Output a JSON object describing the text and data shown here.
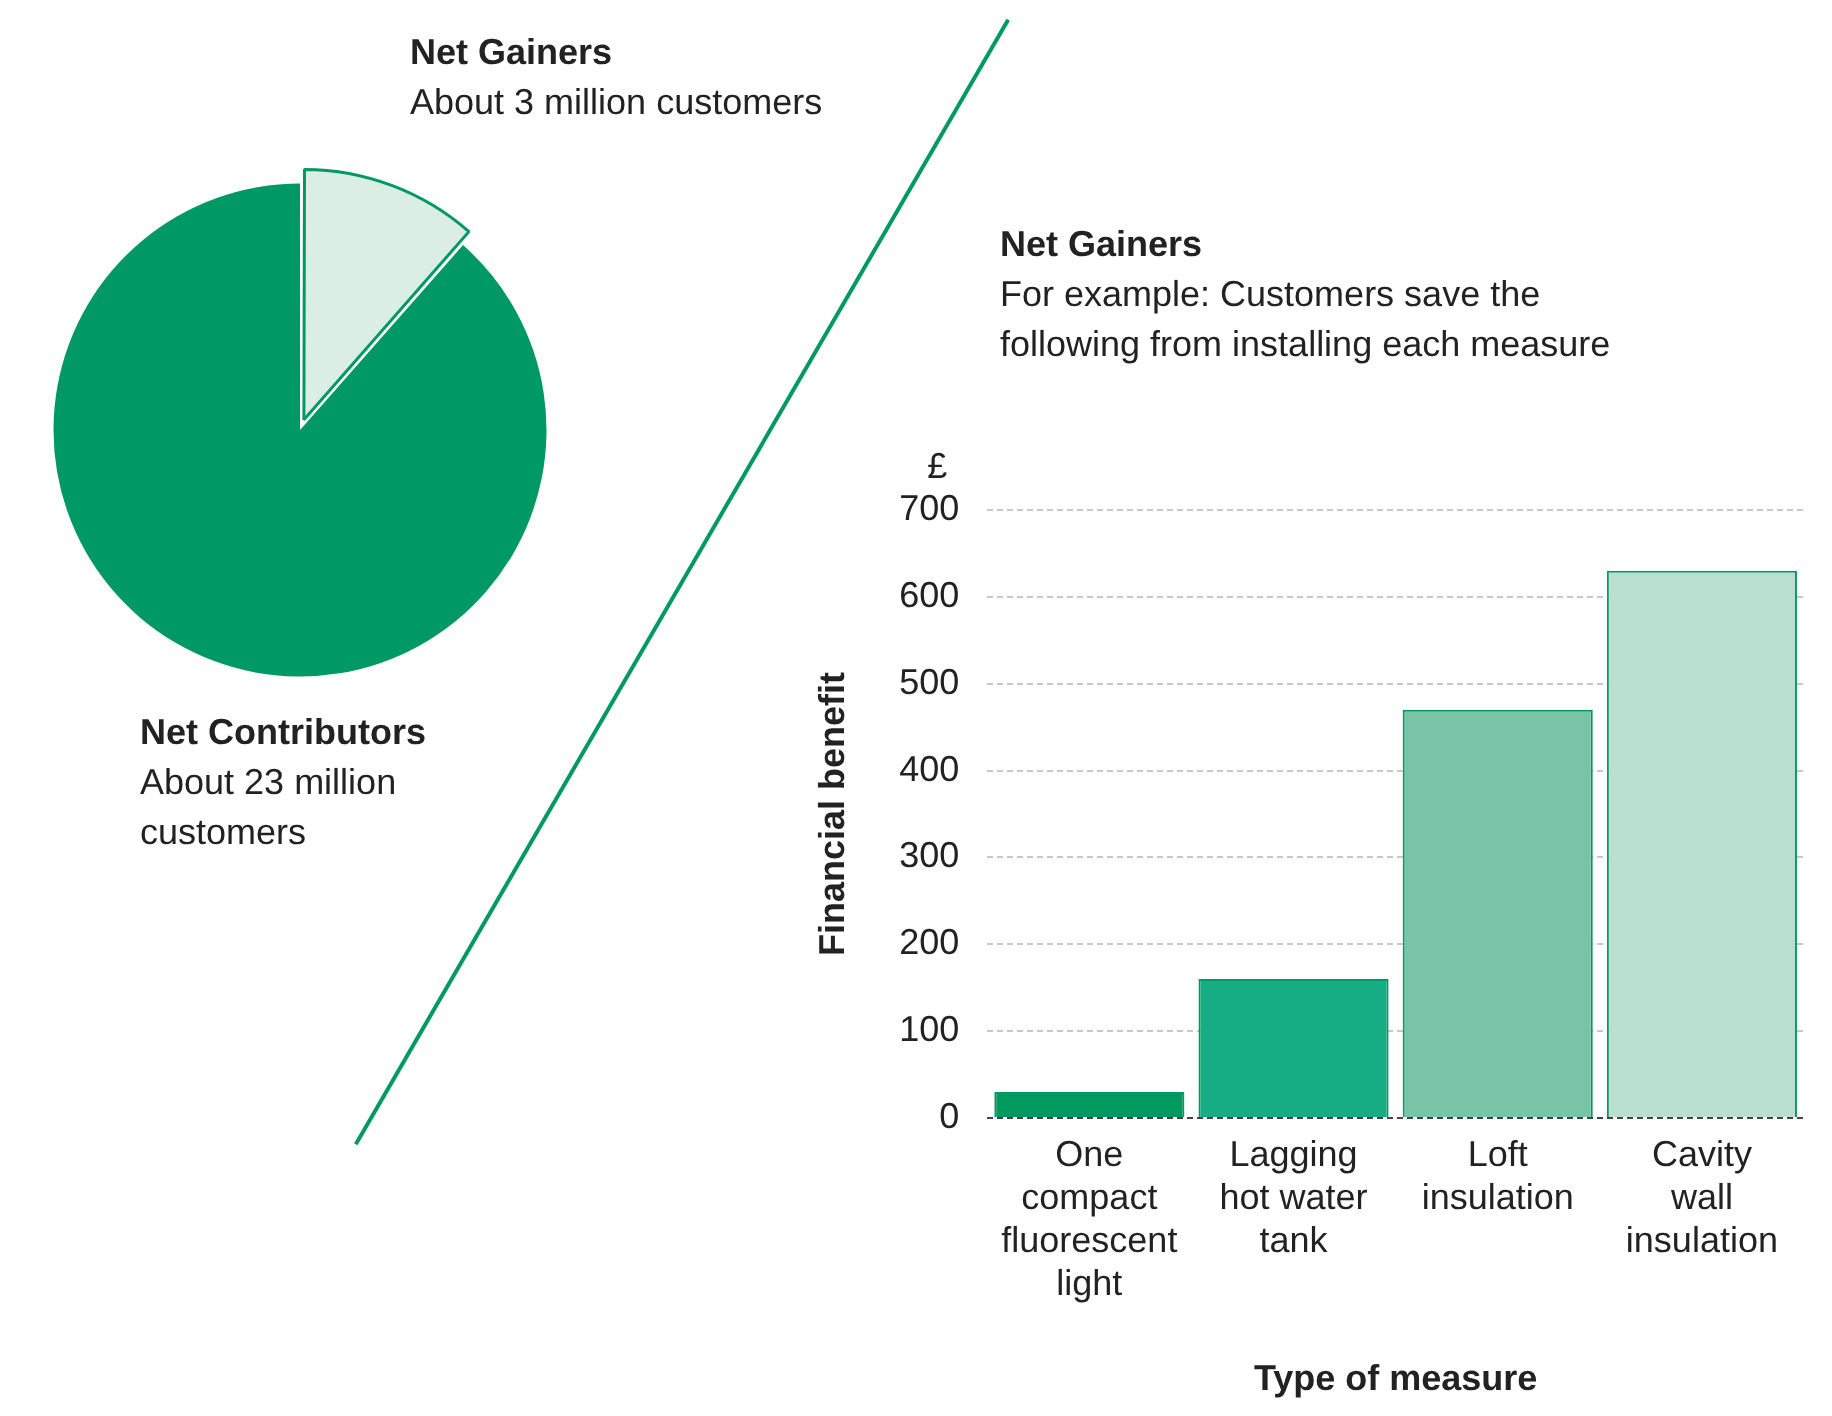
{
  "chart_data": [
    {
      "type": "pie",
      "categories": [
        "Net Gainers",
        "Net Contributors"
      ],
      "values": [
        11.5,
        88.5
      ],
      "value_labels": [
        "About 3 million customers",
        "About 23 million customers"
      ],
      "colors": [
        "#daeee6",
        "#009966"
      ]
    },
    {
      "type": "bar",
      "title": "Net Gainers",
      "subtitle": "For example: Customers save the following from installing each measure",
      "categories": [
        "One compact fluorescent light",
        "Lagging hot water tank",
        "Loft insulation",
        "Cavity wall insulation"
      ],
      "values": [
        30,
        160,
        470,
        630
      ],
      "colors": [
        "#00995f",
        "#17ad84",
        "#79c4a6",
        "#b9dfd0"
      ],
      "xlabel": "Type of measure",
      "ylabel": "Financial benefit",
      "ylim": [
        0,
        700
      ],
      "yticks": [
        0,
        100,
        200,
        300,
        400,
        500,
        600,
        700
      ],
      "grid": "y",
      "annotations": [
        "£"
      ]
    }
  ]
}
